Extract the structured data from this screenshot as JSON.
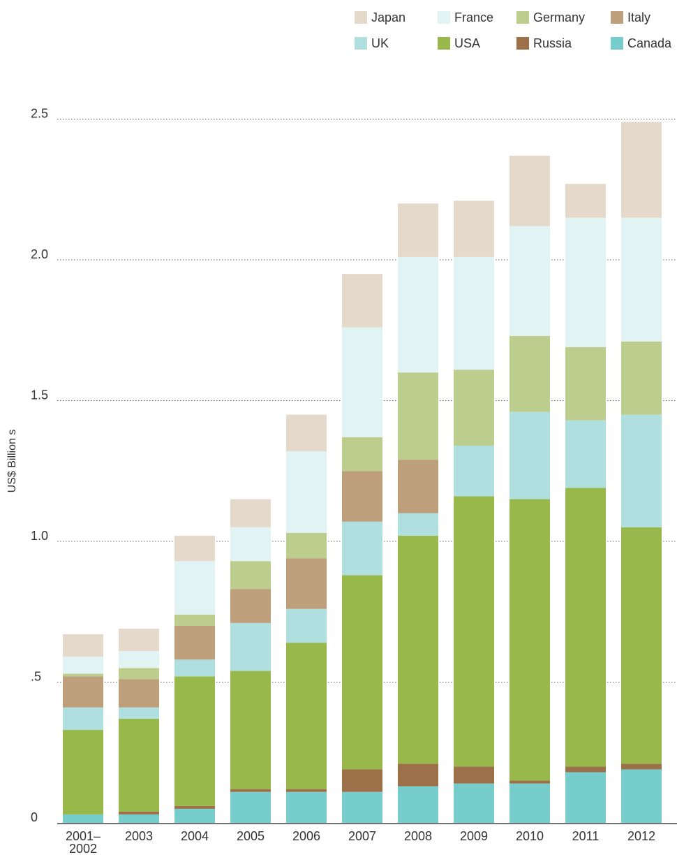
{
  "chart_data": {
    "type": "bar",
    "stacked": true,
    "ylabel": "US$ Billion s",
    "xlabel": "",
    "ylim": [
      0,
      2.5
    ],
    "yticks": [
      {
        "value": 0,
        "label": "0"
      },
      {
        "value": 0.5,
        "label": ".5"
      },
      {
        "value": 1.0,
        "label": "1.0"
      },
      {
        "value": 1.5,
        "label": "1.5"
      },
      {
        "value": 2.0,
        "label": "2.0"
      },
      {
        "value": 2.5,
        "label": "2.5"
      }
    ],
    "grid": true,
    "legend_position": "top-right",
    "categories": [
      "2001–\n2002",
      "2003",
      "2004",
      "2005",
      "2006",
      "2007",
      "2008",
      "2009",
      "2010",
      "2011",
      "2012"
    ],
    "stack_order": [
      "Canada",
      "Russia",
      "USA",
      "UK",
      "Italy",
      "Germany",
      "France",
      "Japan"
    ],
    "legend_order": [
      "Japan",
      "France",
      "Germany",
      "Italy",
      "UK",
      "USA",
      "Russia",
      "Canada"
    ],
    "series": [
      {
        "name": "Canada",
        "color": "#76cdcb",
        "values": [
          0.03,
          0.03,
          0.05,
          0.11,
          0.11,
          0.11,
          0.13,
          0.14,
          0.14,
          0.18,
          0.19
        ]
      },
      {
        "name": "Russia",
        "color": "#9c714a",
        "values": [
          0.0,
          0.01,
          0.01,
          0.01,
          0.01,
          0.08,
          0.08,
          0.06,
          0.01,
          0.02,
          0.02
        ]
      },
      {
        "name": "USA",
        "color": "#98b84b",
        "values": [
          0.3,
          0.33,
          0.46,
          0.42,
          0.52,
          0.69,
          0.81,
          0.96,
          1.0,
          0.99,
          0.84
        ]
      },
      {
        "name": "UK",
        "color": "#b0dfe0",
        "values": [
          0.08,
          0.04,
          0.06,
          0.17,
          0.12,
          0.19,
          0.08,
          0.18,
          0.31,
          0.24,
          0.4
        ]
      },
      {
        "name": "Italy",
        "color": "#bd9f7c",
        "values": [
          0.11,
          0.1,
          0.12,
          0.12,
          0.18,
          0.18,
          0.19,
          0.0,
          0.0,
          0.0,
          0.0
        ]
      },
      {
        "name": "Germany",
        "color": "#bccd8e",
        "values": [
          0.01,
          0.04,
          0.04,
          0.1,
          0.09,
          0.12,
          0.31,
          0.27,
          0.27,
          0.26,
          0.26
        ]
      },
      {
        "name": "France",
        "color": "#e2f3f3",
        "values": [
          0.06,
          0.06,
          0.19,
          0.12,
          0.29,
          0.39,
          0.41,
          0.4,
          0.39,
          0.46,
          0.44
        ]
      },
      {
        "name": "Japan",
        "color": "#e5d9cb",
        "values": [
          0.08,
          0.08,
          0.09,
          0.1,
          0.13,
          0.19,
          0.19,
          0.2,
          0.25,
          0.12,
          0.34
        ]
      }
    ]
  }
}
